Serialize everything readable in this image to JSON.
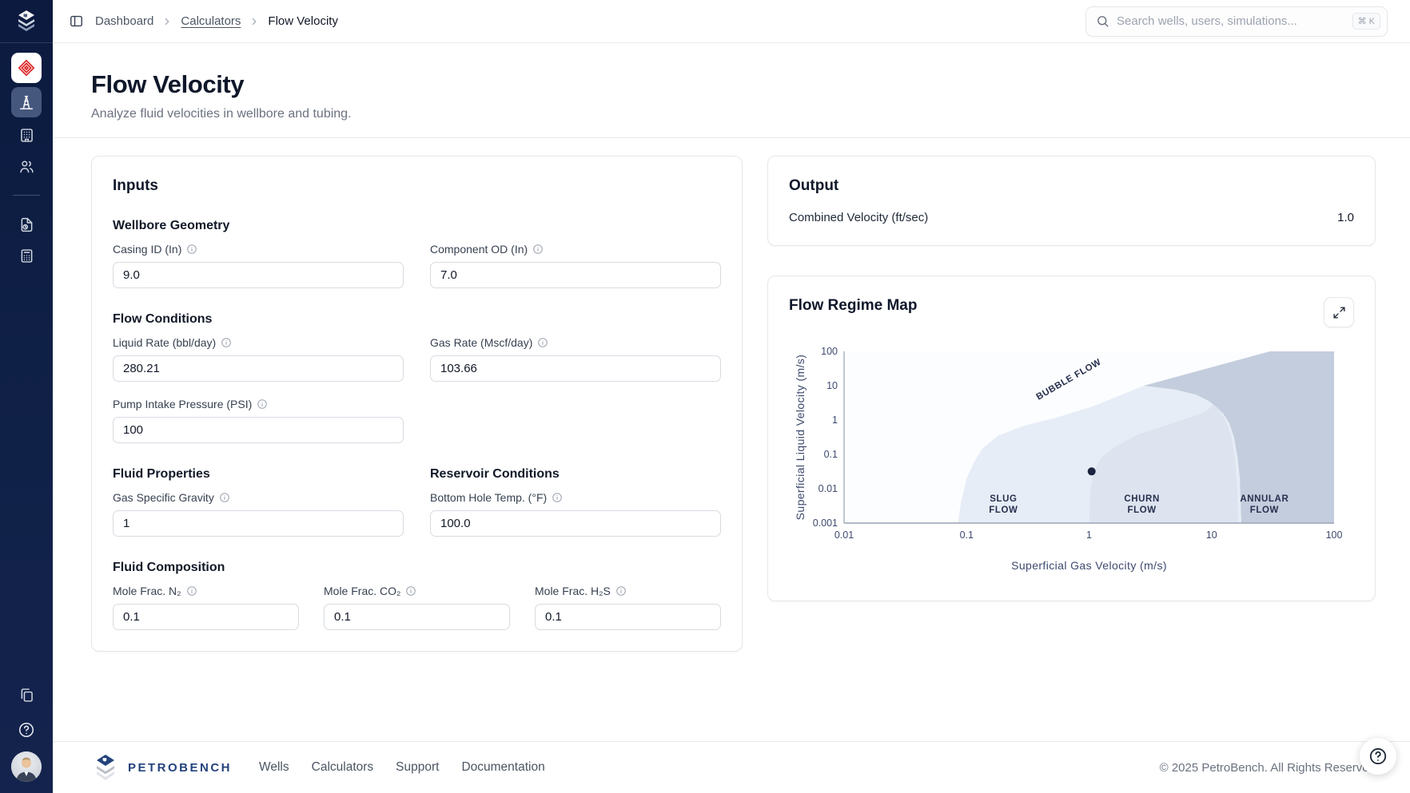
{
  "topbar": {
    "breadcrumb": [
      {
        "label": "Dashboard"
      },
      {
        "label": "Calculators"
      },
      {
        "label": "Flow Velocity"
      }
    ],
    "search_placeholder": "Search wells, users, simulations...",
    "search_shortcut": "⌘ K"
  },
  "sidebar": {
    "items": [
      {
        "icon": "company-logo-red-icon",
        "active": false
      },
      {
        "icon": "derrick-icon",
        "active": true
      },
      {
        "icon": "building-icon",
        "active": false
      },
      {
        "icon": "users-icon",
        "active": false
      },
      {
        "icon": "file-history-icon",
        "active": false
      },
      {
        "icon": "calculator-icon",
        "active": false
      },
      {
        "icon": "copy-icon",
        "active": false
      },
      {
        "icon": "help-icon",
        "active": false
      },
      {
        "icon": "avatar",
        "active": false
      }
    ]
  },
  "page": {
    "title": "Flow Velocity",
    "subtitle": "Analyze fluid velocities in wellbore and tubing."
  },
  "inputs_card": {
    "title": "Inputs",
    "sections": [
      {
        "heading": "Wellbore Geometry",
        "fields": [
          {
            "label": "Casing ID (In)",
            "value": "9.0"
          },
          {
            "label": "Component OD (In)",
            "value": "7.0"
          }
        ]
      },
      {
        "heading": "Flow Conditions",
        "fields": [
          {
            "label": "Liquid Rate (bbl/day)",
            "value": "280.21"
          },
          {
            "label": "Gas Rate (Mscf/day)",
            "value": "103.66"
          },
          {
            "label": "Pump Intake Pressure (PSI)",
            "value": "100"
          }
        ]
      },
      {
        "heading": "Fluid Properties",
        "fields": [
          {
            "label": "Gas Specific Gravity",
            "value": "1"
          }
        ]
      },
      {
        "heading": "Reservoir Conditions",
        "fields": [
          {
            "label": "Bottom Hole Temp. (°F)",
            "value": "100.0"
          }
        ]
      },
      {
        "heading": "Fluid Composition",
        "fields": [
          {
            "label": "Mole Frac. N₂",
            "value": "0.1"
          },
          {
            "label": "Mole Frac. CO₂",
            "value": "0.1"
          },
          {
            "label": "Mole Frac. H₂S",
            "value": "0.1"
          }
        ]
      }
    ]
  },
  "output_card": {
    "title": "Output",
    "rows": [
      {
        "label": "Combined Velocity (ft/sec)",
        "value": "1.0"
      }
    ]
  },
  "chart_card": {
    "title": "Flow Regime Map"
  },
  "chart_data": {
    "type": "area",
    "title": "Flow Regime Map",
    "xlabel": "Superficial Gas Velocity (m/s)",
    "ylabel": "Superficial Liquid Velocity (m/s)",
    "x_scale": "log",
    "y_scale": "log",
    "xlim": [
      0.01,
      100
    ],
    "ylim": [
      0.001,
      100
    ],
    "x_ticks": [
      "0.01",
      "0.1",
      "1",
      "10",
      "100"
    ],
    "y_ticks": [
      "100",
      "10",
      "1",
      "0.1",
      "0.01",
      "0.001"
    ],
    "grid": false,
    "plot_bg": "#fcfdff",
    "regions": [
      {
        "name": "Slug Flow",
        "color": "#e7edf6",
        "points": [
          [
            0.085,
            0.001
          ],
          [
            0.09,
            0.004
          ],
          [
            0.1,
            0.02
          ],
          [
            0.115,
            0.06
          ],
          [
            0.135,
            0.15
          ],
          [
            0.18,
            0.35
          ],
          [
            0.3,
            0.7
          ],
          [
            0.55,
            1.2
          ],
          [
            1.1,
            2.6
          ],
          [
            2.8,
            10
          ],
          [
            30,
            100
          ],
          [
            100,
            100
          ],
          [
            100,
            0.001
          ]
        ]
      },
      {
        "name": "Churn Flow",
        "color": "#dde4ef",
        "points": [
          [
            1,
            0.001
          ],
          [
            1.03,
            0.01
          ],
          [
            1.08,
            0.03
          ],
          [
            1.25,
            0.08
          ],
          [
            1.6,
            0.16
          ],
          [
            2.5,
            0.38
          ],
          [
            5,
            0.85
          ],
          [
            8,
            1.5
          ],
          [
            9.5,
            2.1
          ],
          [
            10.5,
            3
          ],
          [
            11.5,
            2
          ],
          [
            13,
            1
          ],
          [
            14.5,
            0.35
          ],
          [
            15.5,
            0.08
          ],
          [
            16.2,
            0.01
          ],
          [
            16.5,
            0.001
          ]
        ]
      },
      {
        "name": "Annular Flow",
        "color": "#c4cddd",
        "points": [
          [
            17.5,
            0.001
          ],
          [
            17,
            0.02
          ],
          [
            16.3,
            0.08
          ],
          [
            15.3,
            0.3
          ],
          [
            14,
            0.8
          ],
          [
            12.5,
            1.5
          ],
          [
            11,
            2.4
          ],
          [
            9.5,
            3.6
          ],
          [
            7.5,
            5.5
          ],
          [
            5,
            7.8
          ],
          [
            2.8,
            10
          ],
          [
            30,
            100
          ],
          [
            100,
            100
          ],
          [
            100,
            0.001
          ]
        ]
      }
    ],
    "labels": [
      {
        "lines": [
          "BUBBLE FLOW"
        ],
        "x": 0.7,
        "y": 13,
        "rotate": -30
      },
      {
        "lines": [
          "SLUG",
          "FLOW"
        ],
        "x": 0.2,
        "y": 0.0042
      },
      {
        "lines": [
          "CHURN",
          "FLOW"
        ],
        "x": 2.7,
        "y": 0.0042
      },
      {
        "lines": [
          "ANNULAR",
          "FLOW"
        ],
        "x": 27,
        "y": 0.0042
      }
    ],
    "point": {
      "x": 1.05,
      "y": 0.032,
      "color": "#1b2440"
    }
  },
  "footer": {
    "wordmark": "PETROBENCH",
    "links": [
      "Wells",
      "Calculators",
      "Support",
      "Documentation"
    ],
    "copyright": "© 2025 PetroBench. All Rights Reserved"
  },
  "colors": {
    "sidebar_bg": "#102148",
    "accent_navy": "#24437c",
    "brand_red": "#dc2626",
    "border": "#e5e7eb"
  }
}
